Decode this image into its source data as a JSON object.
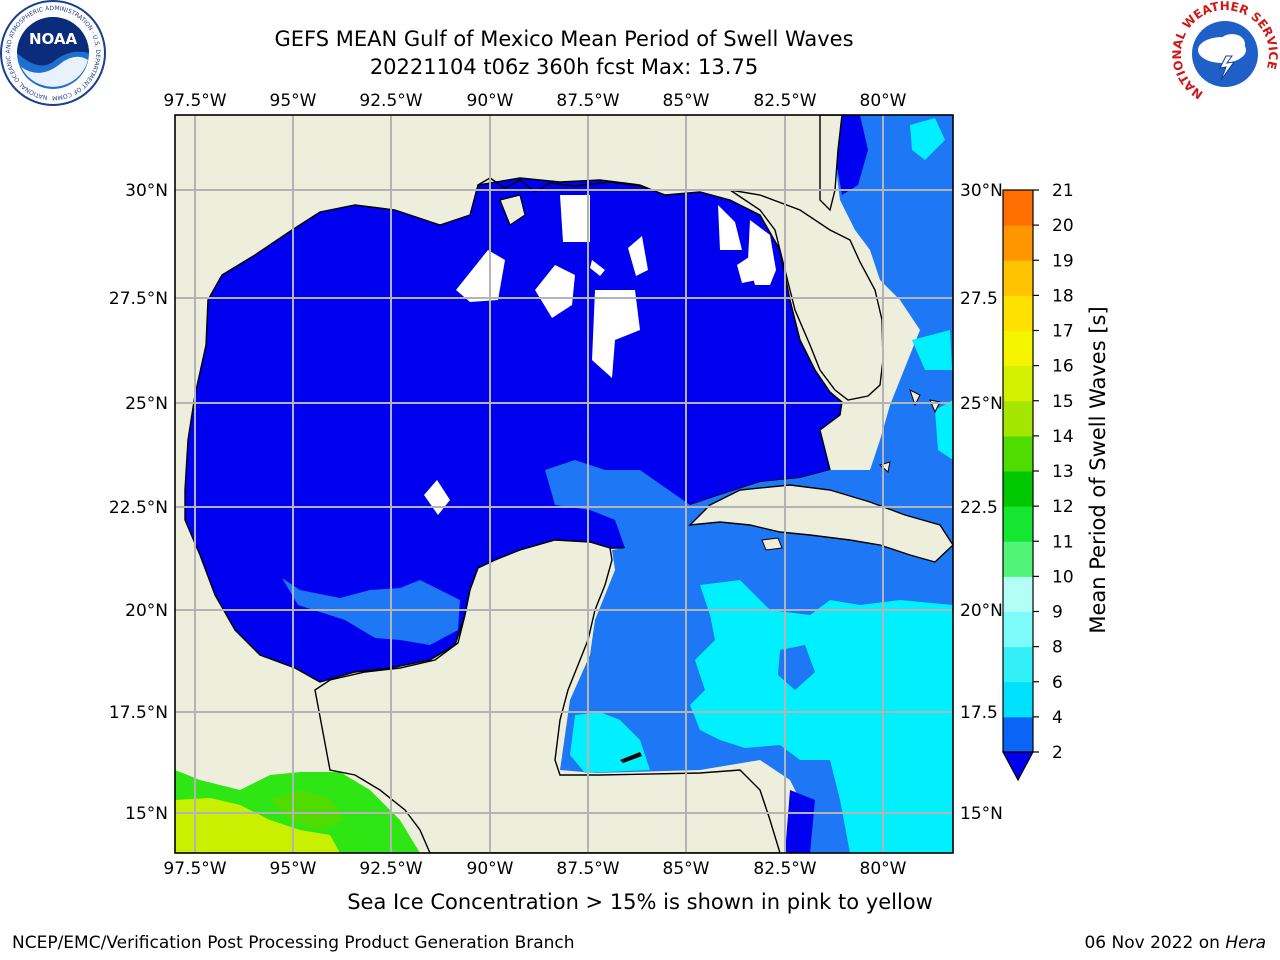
{
  "title_line1": "GEFS MEAN Gulf of Mexico Mean Period of Swell Waves",
  "title_line2": "20221104 t06z 360h fcst   Max: 13.75",
  "lon_labels": [
    "97.5°W",
    "95°W",
    "92.5°W",
    "90°W",
    "87.5°W",
    "85°W",
    "82.5°W",
    "80°W"
  ],
  "lat_labels": [
    "30°N",
    "27.5°N",
    "25°N",
    "22.5°N",
    "20°N",
    "17.5°N",
    "15°N"
  ],
  "right_lat_labels": [
    "30°N",
    "27.5",
    "25°N",
    "22.5",
    "20°N",
    "17.5",
    "15°N"
  ],
  "colorbar": {
    "label": "Mean Period of Swell Waves [s]",
    "ticks": [
      "2",
      "4",
      "6",
      "8",
      "9",
      "10",
      "11",
      "12",
      "13",
      "14",
      "15",
      "16",
      "17",
      "18",
      "19",
      "20",
      "21"
    ],
    "colors": [
      "#0a64f5",
      "#00e1ff",
      "#32f0f5",
      "#7dfafa",
      "#b4fff5",
      "#50f578",
      "#14e632",
      "#00c800",
      "#50dc00",
      "#a5e600",
      "#d2f000",
      "#f5f500",
      "#ffe100",
      "#ffc300",
      "#ff9600",
      "#ff6e00",
      "#ff3c00",
      "#ff1400",
      "#ff0000"
    ],
    "under_color": "#0000f0"
  },
  "colors": {
    "land": "#eeeedc",
    "deep_blue": "#0000f0",
    "mid_blue": "#1e78f5",
    "cyan": "#00f0ff",
    "green": "#2ee614",
    "yellow_green": "#c8f000"
  },
  "logos": {
    "left": "NOAA",
    "left_ring_text": "NATIONAL OCEANIC AND ATMOSPHERIC ADMINISTRATION · U.S. DEPARTMENT OF COMMERCE",
    "right_ring_text": "NATIONAL WEATHER SERVICE"
  },
  "note": "Sea Ice Concentration > 15% is shown in pink to yellow",
  "footer_left": "NCEP/EMC/Verification Post Processing Product Generation Branch",
  "footer_date": "06 Nov 2022 on",
  "footer_host": "Hera"
}
